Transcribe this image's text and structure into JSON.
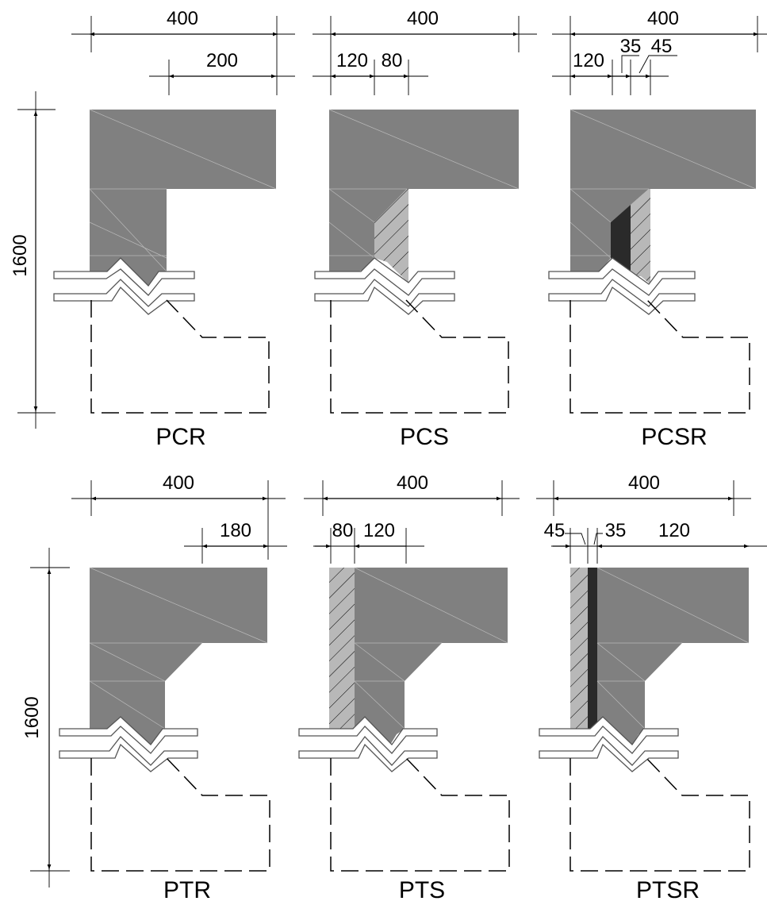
{
  "colors": {
    "concrete": "#808080",
    "strengthening_layer": "#b8b8b8",
    "resin_layer": "#2a2a2a",
    "lines": "#000000"
  },
  "specimens": [
    {
      "label": "PCR",
      "top_dims": [
        "400",
        "200"
      ],
      "height_dim": "1600"
    },
    {
      "label": "PCS",
      "top_dims": [
        "400",
        "120",
        "80"
      ]
    },
    {
      "label": "PCSR",
      "top_dims": [
        "400",
        "120",
        "35",
        "45"
      ]
    },
    {
      "label": "PTR",
      "top_dims": [
        "400",
        "180"
      ],
      "height_dim": "1600"
    },
    {
      "label": "PTS",
      "top_dims": [
        "400",
        "80",
        "120"
      ]
    },
    {
      "label": "PTSR",
      "top_dims": [
        "400",
        "45",
        "35",
        "120"
      ]
    }
  ]
}
